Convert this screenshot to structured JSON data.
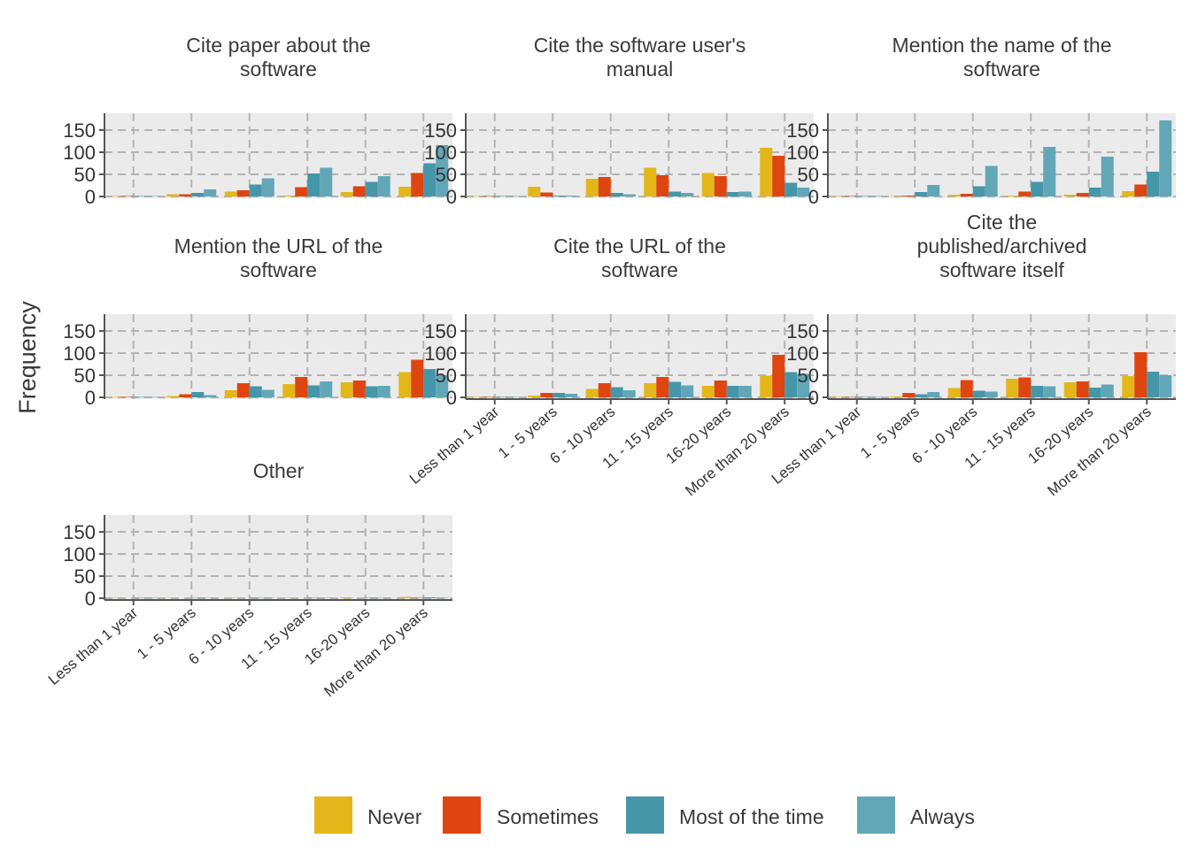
{
  "chart_data": {
    "type": "bar",
    "ylabel": "Frequency",
    "xlabel": "",
    "ylim": [
      0,
      180
    ],
    "yticks": [
      0,
      50,
      100,
      150
    ],
    "grid": true,
    "legend_position": "bottom",
    "categories": [
      "Less than 1 year",
      "1 - 5 years",
      "6 - 10 years",
      "11 - 15 years",
      "16-20 years",
      "More than 20 years"
    ],
    "series_names": [
      "Never",
      "Sometimes",
      "Most of the time",
      "Always"
    ],
    "colors": {
      "Never": "#e3b71a",
      "Sometimes": "#df4510",
      "Most of the time": "#4696aa",
      "Always": "#62a7b8"
    },
    "panels": [
      {
        "title": "Cite paper about the software",
        "values": [
          [
            1,
            1,
            1,
            1
          ],
          [
            5,
            5,
            8,
            16
          ],
          [
            11,
            14,
            27,
            41
          ],
          [
            2,
            21,
            52,
            65
          ],
          [
            10,
            23,
            33,
            46
          ],
          [
            22,
            53,
            75,
            116
          ]
        ]
      },
      {
        "title": "Cite the software user's manual",
        "values": [
          [
            1,
            1,
            1,
            1
          ],
          [
            22,
            9,
            2,
            2
          ],
          [
            40,
            44,
            8,
            5
          ],
          [
            65,
            48,
            11,
            8
          ],
          [
            53,
            46,
            10,
            11
          ],
          [
            110,
            92,
            31,
            20
          ]
        ]
      },
      {
        "title": "Mention the name of the software",
        "values": [
          [
            1,
            1,
            1,
            1
          ],
          [
            1,
            2,
            10,
            26
          ],
          [
            4,
            6,
            23,
            69
          ],
          [
            2,
            11,
            33,
            112
          ],
          [
            4,
            8,
            20,
            90
          ],
          [
            12,
            27,
            56,
            172
          ]
        ]
      },
      {
        "title": "Mention the URL of the software",
        "values": [
          [
            1,
            1,
            1,
            1
          ],
          [
            3,
            7,
            12,
            5
          ],
          [
            16,
            32,
            25,
            17
          ],
          [
            30,
            46,
            27,
            36
          ],
          [
            34,
            38,
            25,
            26
          ],
          [
            57,
            85,
            64,
            50
          ]
        ]
      },
      {
        "title": "Cite the URL of the software",
        "values": [
          [
            1,
            1,
            1,
            1
          ],
          [
            4,
            10,
            10,
            8
          ],
          [
            19,
            32,
            23,
            16
          ],
          [
            32,
            46,
            35,
            27
          ],
          [
            26,
            38,
            26,
            26
          ],
          [
            49,
            96,
            57,
            53
          ]
        ]
      },
      {
        "title": "Cite the published/archived software itself",
        "values": [
          [
            1,
            1,
            1,
            1
          ],
          [
            2,
            10,
            7,
            12
          ],
          [
            21,
            39,
            15,
            13
          ],
          [
            42,
            45,
            26,
            25
          ],
          [
            34,
            36,
            22,
            29
          ],
          [
            48,
            102,
            58,
            50
          ]
        ]
      },
      {
        "title": "Other",
        "values": [
          [
            1,
            0,
            1,
            1
          ],
          [
            1,
            0,
            1,
            1
          ],
          [
            1,
            0,
            1,
            1
          ],
          [
            1,
            0,
            1,
            1
          ],
          [
            2,
            0,
            1,
            1
          ],
          [
            3,
            1,
            2,
            1
          ]
        ]
      }
    ]
  }
}
